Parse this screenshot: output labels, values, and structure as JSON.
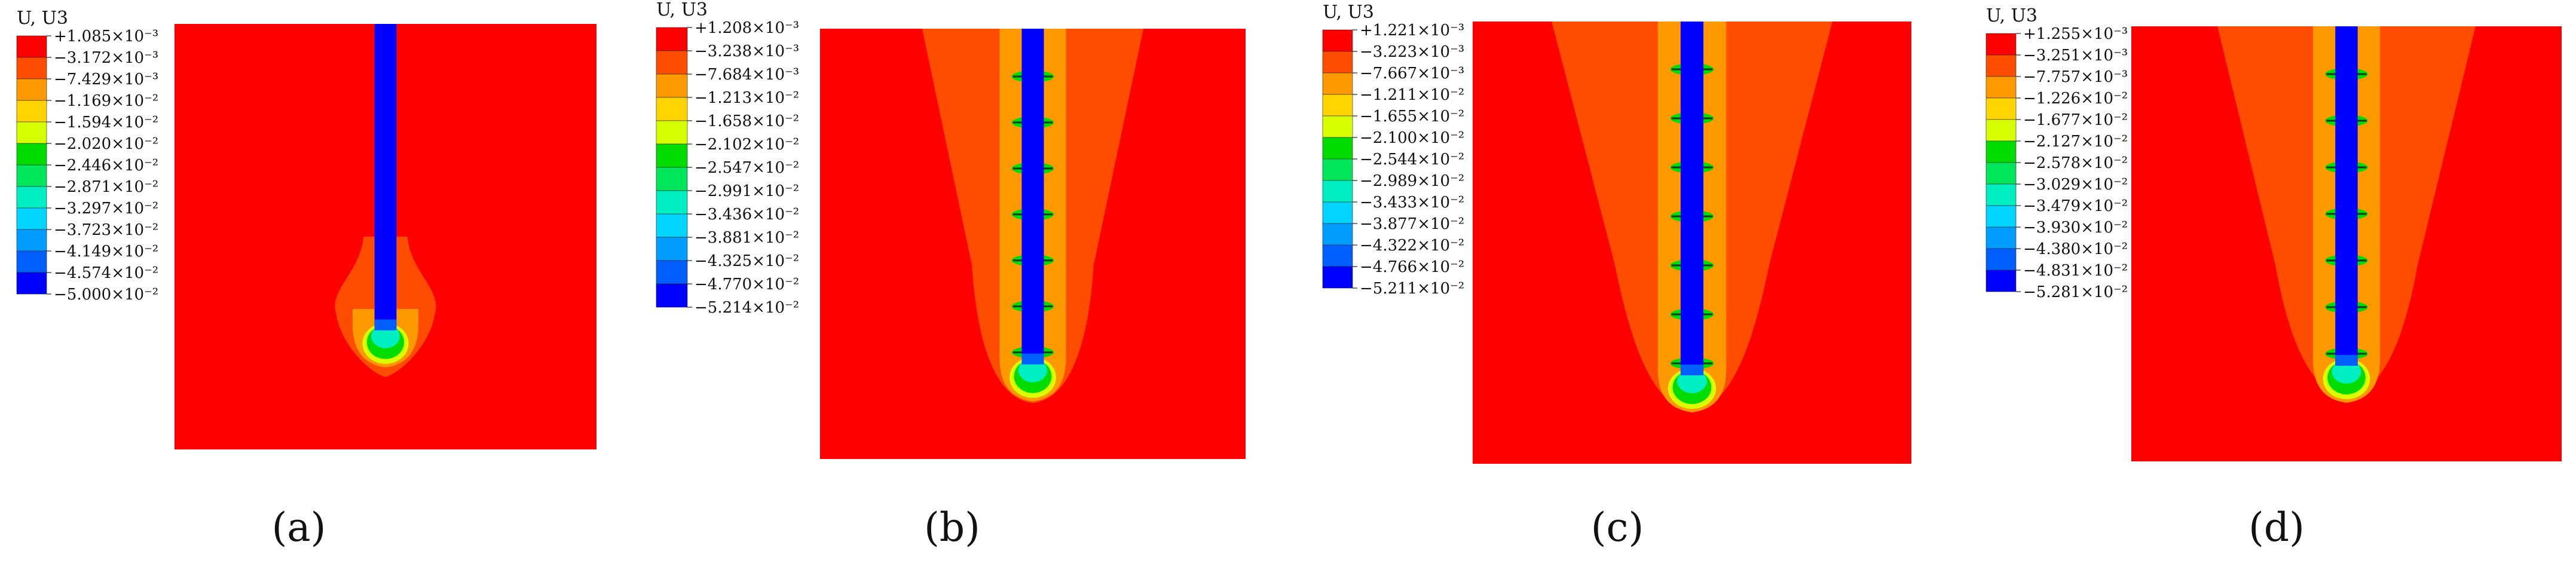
{
  "legend_colors": [
    "#ff0000",
    "#ff4d00",
    "#ff9900",
    "#ffd400",
    "#d8ff00",
    "#00dc00",
    "#00e65a",
    "#00efc2",
    "#00d4ff",
    "#009cff",
    "#005fff",
    "#0000ff"
  ],
  "panels": [
    {
      "legend_title": "U, U3",
      "values": [
        "+1.085×10⁻³",
        "−3.172×10⁻³",
        "−7.429×10⁻³",
        "−1.169×10⁻²",
        "−1.594×10⁻²",
        "−2.020×10⁻²",
        "−2.446×10⁻²",
        "−2.871×10⁻²",
        "−3.297×10⁻²",
        "−3.723×10⁻²",
        "−4.149×10⁻²",
        "−4.574×10⁻²",
        "−5.000×10⁻²"
      ],
      "caption": "(a)",
      "pile_depth": 0.72,
      "plume_depth": 0.83,
      "plume_half_width_top": 0.05,
      "plume_half_width_bottom": 0.09,
      "plume_start": 0.5,
      "ring_count": 0
    },
    {
      "legend_title": "U, U3",
      "values": [
        "+1.208×10⁻³",
        "−3.238×10⁻³",
        "−7.684×10⁻³",
        "−1.213×10⁻²",
        "−1.658×10⁻²",
        "−2.102×10⁻²",
        "−2.547×10⁻²",
        "−2.991×10⁻²",
        "−3.436×10⁻²",
        "−3.881×10⁻²",
        "−4.325×10⁻²",
        "−4.770×10⁻²",
        "−5.214×10⁻²"
      ],
      "caption": "(b)",
      "pile_depth": 0.78,
      "plume_depth": 0.87,
      "plume_half_width_top": 0.26,
      "plume_half_width_bottom": 0.08,
      "plume_start": 0.0,
      "ring_count": 7
    },
    {
      "legend_title": "U, U3",
      "values": [
        "+1.221×10⁻³",
        "−3.223×10⁻³",
        "−7.667×10⁻³",
        "−1.211×10⁻²",
        "−1.655×10⁻²",
        "−2.100×10⁻²",
        "−2.544×10⁻²",
        "−2.989×10⁻²",
        "−3.433×10⁻²",
        "−3.877×10⁻²",
        "−4.322×10⁻²",
        "−4.766×10⁻²",
        "−5.211×10⁻²"
      ],
      "caption": "(c)",
      "pile_depth": 0.8,
      "plume_depth": 0.88,
      "plume_half_width_top": 0.32,
      "plume_half_width_bottom": 0.08,
      "plume_start": 0.0,
      "ring_count": 7
    },
    {
      "legend_title": "U, U3",
      "values": [
        "+1.255×10⁻³",
        "−3.251×10⁻³",
        "−7.757×10⁻³",
        "−1.226×10⁻²",
        "−1.677×10⁻²",
        "−2.127×10⁻²",
        "−2.578×10⁻²",
        "−3.029×10⁻²",
        "−3.479×10⁻²",
        "−3.930×10⁻²",
        "−4.380×10⁻²",
        "−4.831×10⁻²",
        "−5.281×10⁻²"
      ],
      "caption": "(d)",
      "pile_depth": 0.78,
      "plume_depth": 0.85,
      "plume_half_width_top": 0.3,
      "plume_half_width_bottom": 0.08,
      "plume_start": 0.0,
      "ring_count": 7
    }
  ]
}
